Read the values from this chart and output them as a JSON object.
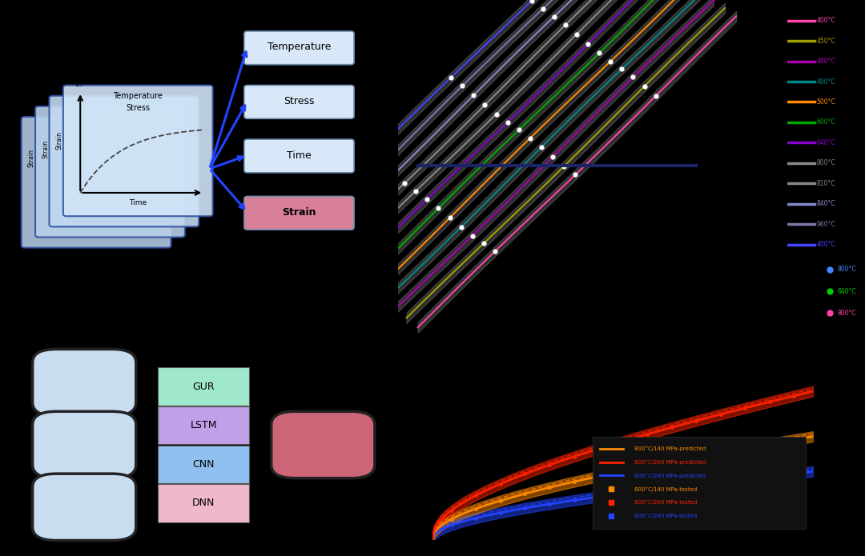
{
  "bg_color": "#000000",
  "input_labels": [
    "Temperature",
    "Stress",
    "Time",
    "Strain"
  ],
  "input_box_colors": [
    "#d8e8f8",
    "#d8e8f8",
    "#d8e8f8",
    "#d8809a"
  ],
  "input_box_bold": [
    false,
    false,
    false,
    true
  ],
  "nn_labels": [
    "DNN",
    "CNN",
    "LSTM",
    "GUR"
  ],
  "nn_colors": [
    "#f0b8cc",
    "#90c0f0",
    "#c0a0e8",
    "#a0e8cc"
  ],
  "top_line_colors": [
    "#ff44aa",
    "#a0a000",
    "#aa00aa",
    "#008888",
    "#ff8800",
    "#00aa00",
    "#8800cc",
    "#888888",
    "#888888",
    "#8888cc",
    "#7777aa",
    "#4444ff"
  ],
  "top_line_labels": [
    "400°C",
    "450°C",
    "480°C",
    "490°C",
    "500°C",
    "600°C",
    "640°C",
    "800°C",
    "810°C",
    "840°C",
    "960°C",
    "400°C"
  ],
  "top_dot_colors": [
    "#4488ff",
    "#00cc00",
    "#ff44aa"
  ],
  "top_dot_labels": [
    "800°C",
    "640°C",
    "800°C"
  ],
  "bot_pred_colors": [
    "#ff8800",
    "#ff2200",
    "#2244ff"
  ],
  "bot_meas_colors": [
    "#ff8800",
    "#ff2200",
    "#2244ff"
  ],
  "bot_pred_labels": [
    "800°C/140 MPa-predicted",
    "800°C/200 MPa-predicted",
    "800°C/240 MPa-predicted"
  ],
  "bot_meas_labels": [
    "800°C/140 MPa-tested",
    "800°C/200 MPa-tested",
    "800°C/240 MPa-tested"
  ]
}
